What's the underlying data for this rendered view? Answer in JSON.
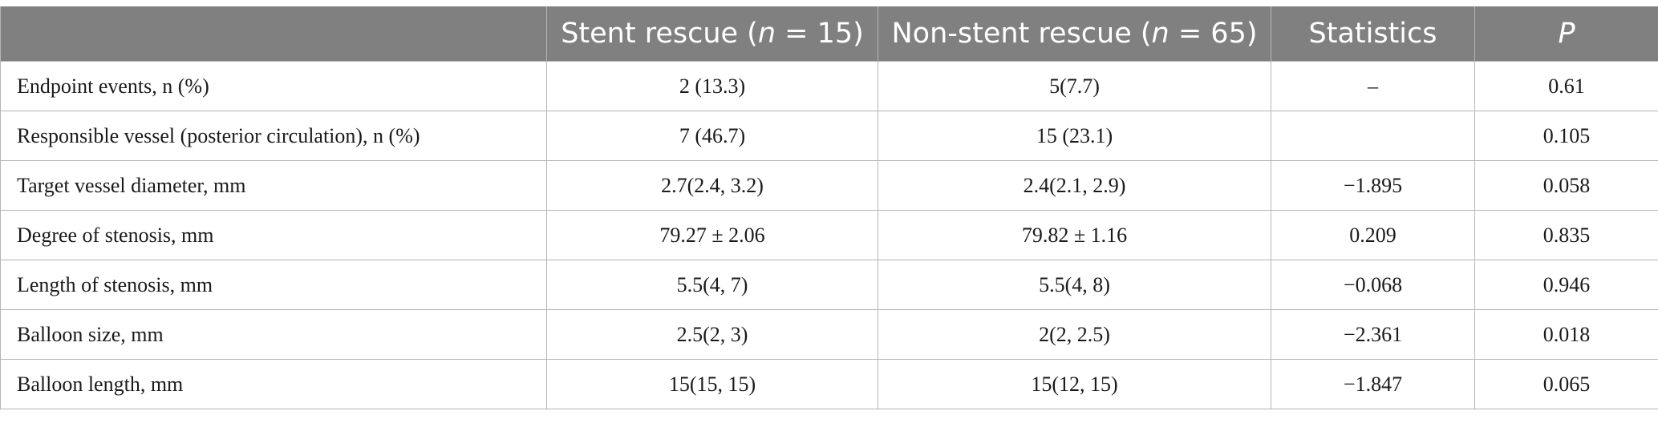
{
  "table": {
    "header": {
      "col0": "",
      "col1_prefix": "Stent rescue (",
      "col1_n": "n",
      "col1_suffix": " = 15)",
      "col2_prefix": "Non-stent rescue (",
      "col2_n": "n",
      "col2_suffix": " = 65)",
      "col3": "Statistics",
      "col4": "P"
    },
    "rows": [
      {
        "label": "Endpoint events, n (%)",
        "stent": "2 (13.3)",
        "non_stent": "5(7.7)",
        "statistics": "–",
        "p": "0.61"
      },
      {
        "label": "Responsible vessel (posterior circulation), n (%)",
        "stent": "7 (46.7)",
        "non_stent": "15 (23.1)",
        "statistics": "",
        "p": "0.105"
      },
      {
        "label": "Target vessel diameter, mm",
        "stent": "2.7(2.4, 3.2)",
        "non_stent": "2.4(2.1, 2.9)",
        "statistics": "−1.895",
        "p": "0.058"
      },
      {
        "label": "Degree of stenosis, mm",
        "stent": "79.27 ± 2.06",
        "non_stent": "79.82 ± 1.16",
        "statistics": "0.209",
        "p": "0.835"
      },
      {
        "label": "Length of stenosis, mm",
        "stent": "5.5(4, 7)",
        "non_stent": "5.5(4, 8)",
        "statistics": "−0.068",
        "p": "0.946"
      },
      {
        "label": "Balloon size, mm",
        "stent": "2.5(2, 3)",
        "non_stent": "2(2, 2.5)",
        "statistics": "−2.361",
        "p": "0.018"
      },
      {
        "label": "Balloon length, mm",
        "stent": "15(15, 15)",
        "non_stent": "15(12, 15)",
        "statistics": "−1.847",
        "p": "0.065"
      }
    ]
  },
  "colors": {
    "header_bg": "#808080",
    "header_text": "#ffffff",
    "grid": "#b5b5b5",
    "body_text": "#1a1a1a"
  }
}
